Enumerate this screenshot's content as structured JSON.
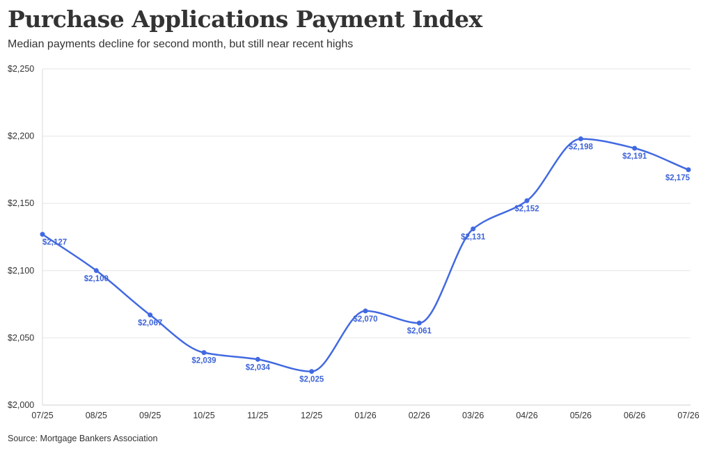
{
  "title": "Purchase Applications Payment Index",
  "subtitle": "Median payments decline for second month, but still near recent highs",
  "source": "Source: Mortgage Bankers Association",
  "colors": {
    "line": "#4169e1",
    "label": "#3e64d8",
    "grid": "#e6e6e6"
  },
  "chart_data": {
    "type": "line",
    "title": "Purchase Applications Payment Index",
    "subtitle": "Median payments decline for second month, but still near recent highs",
    "x": [
      "07/25",
      "08/25",
      "09/25",
      "10/25",
      "11/25",
      "12/25",
      "01/26",
      "02/26",
      "03/26",
      "04/26",
      "05/26",
      "06/26",
      "07/26"
    ],
    "series": [
      {
        "values": [
          2127,
          2100,
          2067,
          2039,
          2034,
          2025,
          2070,
          2061,
          2131,
          2152,
          2198,
          2191,
          2175
        ]
      }
    ],
    "data_labels": [
      "$2,127",
      "$2,100",
      "$2,067",
      "$2,039",
      "$2,034",
      "$2,025",
      "$2,070",
      "$2,061",
      "$2,131",
      "$2,152",
      "$2,198",
      "$2,191",
      "$2,175"
    ],
    "ylim": [
      2000,
      2250
    ],
    "yticks": [
      2000,
      2050,
      2100,
      2150,
      2200,
      2250
    ],
    "ytick_labels": [
      "$2,000",
      "$2,050",
      "$2,100",
      "$2,150",
      "$2,200",
      "$2,250"
    ],
    "grid": true,
    "legend": "none"
  }
}
